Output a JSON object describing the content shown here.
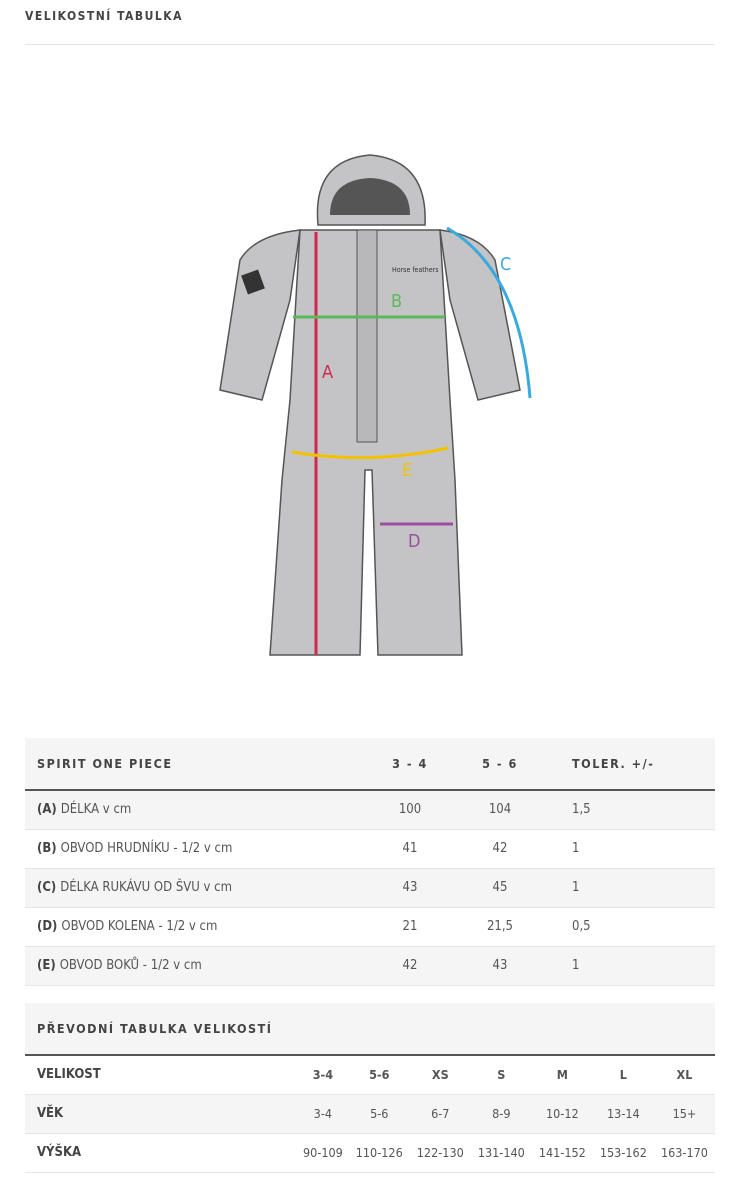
{
  "title": "VELIKOSTNÍ TABULKA",
  "illustration": {
    "brand": "Horse feathers",
    "labels": {
      "a": "A",
      "b": "B",
      "c": "C",
      "d": "D",
      "e": "E"
    },
    "colors": {
      "a": "#d0294f",
      "b": "#5cb85c",
      "c": "#3aa9de",
      "d": "#9b4f9e",
      "e": "#f2c200"
    }
  },
  "size_table": {
    "headers": [
      "SPIRIT ONE PIECE",
      "3 - 4",
      "5 - 6",
      "TOLER. +/-"
    ],
    "rows": [
      {
        "code": "(A)",
        "label": "DÉLKA v cm",
        "v1": "100",
        "v2": "104",
        "tol": "1,5"
      },
      {
        "code": "(B)",
        "label": "OBVOD HRUDNÍKU - 1/2 v cm",
        "v1": "41",
        "v2": "42",
        "tol": "1"
      },
      {
        "code": "(C)",
        "label": "DÉLKA RUKÁVU OD ŠVU v cm",
        "v1": "43",
        "v2": "45",
        "tol": "1"
      },
      {
        "code": "(D)",
        "label": "OBVOD KOLENA - 1/2 v cm",
        "v1": "21",
        "v2": "21,5",
        "tol": "0,5"
      },
      {
        "code": "(E)",
        "label": "OBVOD BOKŮ - 1/2 v cm",
        "v1": "42",
        "v2": "43",
        "tol": "1"
      }
    ]
  },
  "conversion_table": {
    "title": "PŘEVODNÍ TABULKA VELIKOSTÍ",
    "rows": [
      {
        "label": "VELIKOST",
        "values": [
          "3-4",
          "5-6",
          "XS",
          "S",
          "M",
          "L",
          "XL"
        ]
      },
      {
        "label": "VĚK",
        "values": [
          "3-4",
          "5-6",
          "6-7",
          "8-9",
          "10-12",
          "13-14",
          "15+"
        ]
      },
      {
        "label": "VÝŠKA",
        "values": [
          "90-109",
          "110-126",
          "122-130",
          "131-140",
          "141-152",
          "153-162",
          "163-170"
        ]
      }
    ]
  }
}
